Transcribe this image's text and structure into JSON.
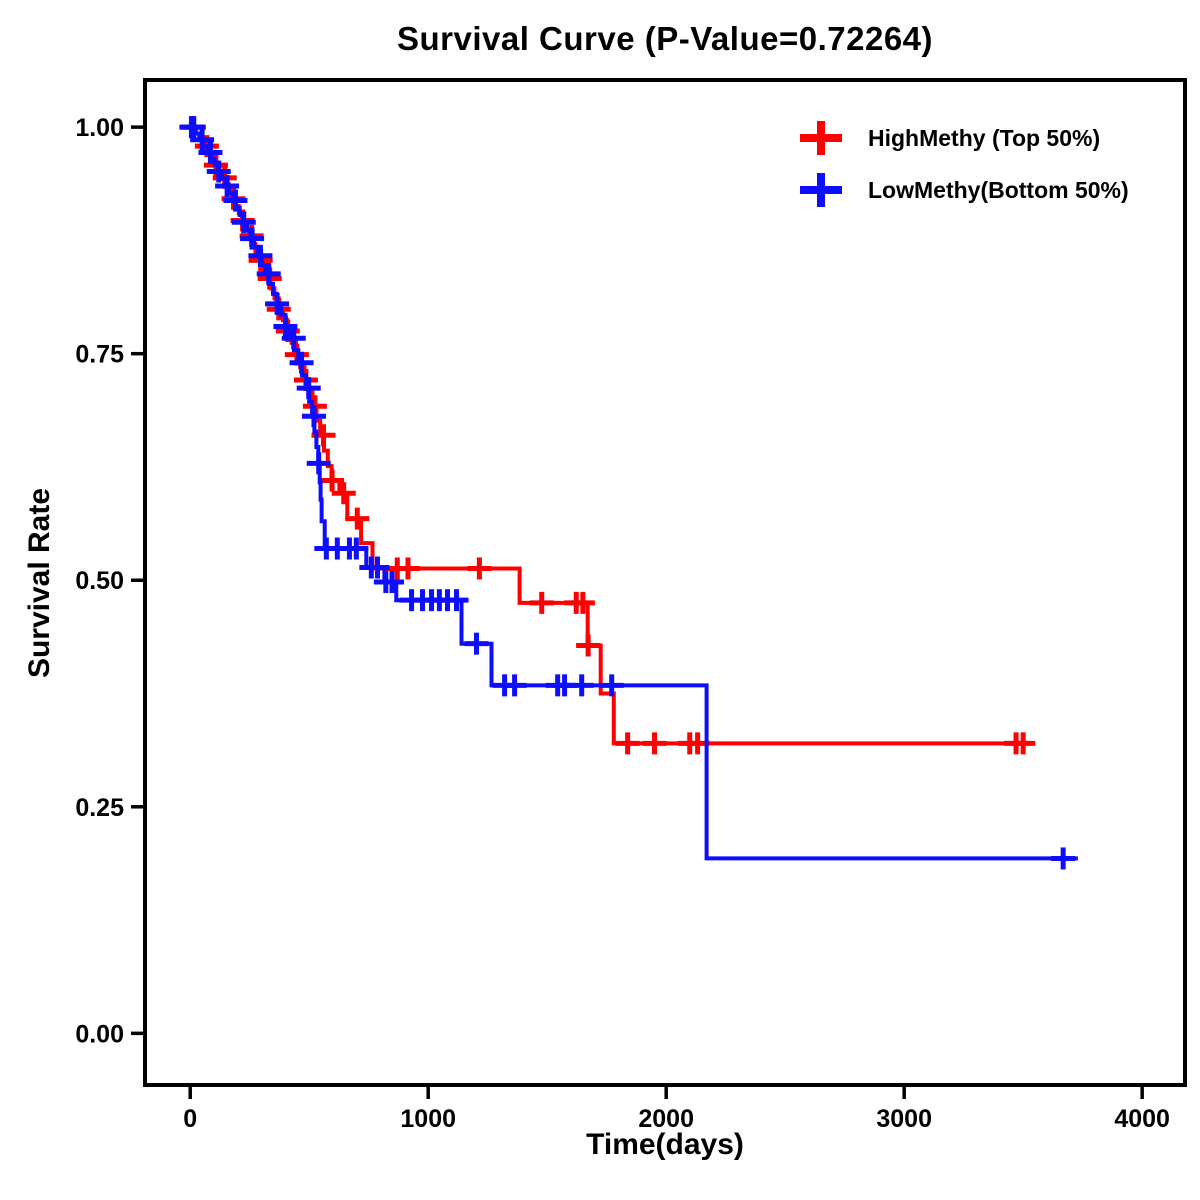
{
  "page": {
    "background": "#FFFFFF"
  },
  "colors": {
    "axis": "#000000",
    "text": "#000000",
    "high_methy": "#FF0000",
    "low_methy": "#0D0DFF"
  },
  "chart_data": {
    "type": "line",
    "subtype": "kaplan-meier-step",
    "title": "Survival Curve (P-Value=0.72264)",
    "p_value": "0.72264",
    "xlabel": "Time(days)",
    "ylabel": "Survival Rate",
    "grid": false,
    "legend_position": "top-right",
    "xlim": [
      -190,
      4180
    ],
    "ylim": [
      -0.057,
      1.052
    ],
    "xticks": {
      "values": [
        0,
        1000,
        2000,
        3000,
        4000
      ],
      "labels": [
        "0",
        "1000",
        "2000",
        "3000",
        "4000"
      ]
    },
    "yticks": {
      "values": [
        0,
        0.25,
        0.5,
        0.75,
        1
      ],
      "labels": [
        "0.00",
        "0.25",
        "0.50",
        "0.75",
        "1.00"
      ]
    },
    "series": [
      {
        "name": "HighMethy (Top 50%)",
        "color": "#FF0000",
        "steps": [
          [
            0,
            1.0
          ],
          [
            25,
            0.993
          ],
          [
            45,
            0.986
          ],
          [
            62,
            0.979
          ],
          [
            78,
            0.972
          ],
          [
            92,
            0.965
          ],
          [
            106,
            0.958
          ],
          [
            120,
            0.951
          ],
          [
            134,
            0.944
          ],
          [
            148,
            0.937
          ],
          [
            162,
            0.929
          ],
          [
            176,
            0.921
          ],
          [
            190,
            0.913
          ],
          [
            204,
            0.905
          ],
          [
            218,
            0.897
          ],
          [
            232,
            0.889
          ],
          [
            246,
            0.88
          ],
          [
            260,
            0.871
          ],
          [
            274,
            0.862
          ],
          [
            290,
            0.853
          ],
          [
            306,
            0.843
          ],
          [
            322,
            0.833
          ],
          [
            338,
            0.822
          ],
          [
            354,
            0.811
          ],
          [
            372,
            0.799
          ],
          [
            390,
            0.787
          ],
          [
            408,
            0.775
          ],
          [
            426,
            0.762
          ],
          [
            444,
            0.749
          ],
          [
            462,
            0.735
          ],
          [
            480,
            0.721
          ],
          [
            498,
            0.707
          ],
          [
            514,
            0.692
          ],
          [
            530,
            0.676
          ],
          [
            546,
            0.66
          ],
          [
            562,
            0.643
          ],
          [
            578,
            0.626
          ],
          [
            594,
            0.61
          ],
          [
            627,
            0.596
          ],
          [
            660,
            0.568
          ],
          [
            718,
            0.541
          ],
          [
            766,
            0.513
          ],
          [
            1384,
            0.475
          ],
          [
            1670,
            0.428
          ],
          [
            1725,
            0.375
          ],
          [
            1780,
            0.32
          ]
        ],
        "end_time": 3545,
        "censor_times": [
          10,
          70,
          108,
          145,
          182,
          220,
          258,
          296,
          334,
          372,
          410,
          448,
          486,
          524,
          560,
          596,
          645,
          702,
          870,
          915,
          1215,
          1477,
          1622,
          1650,
          1672,
          1838,
          1951,
          2099,
          2132,
          3470,
          3500
        ]
      },
      {
        "name": "LowMethy(Bottom 50%)",
        "color": "#0D0DFF",
        "steps": [
          [
            0,
            1.0
          ],
          [
            20,
            0.993
          ],
          [
            38,
            0.986
          ],
          [
            55,
            0.979
          ],
          [
            72,
            0.972
          ],
          [
            88,
            0.965
          ],
          [
            103,
            0.958
          ],
          [
            118,
            0.951
          ],
          [
            133,
            0.943
          ],
          [
            148,
            0.935
          ],
          [
            163,
            0.927
          ],
          [
            178,
            0.919
          ],
          [
            193,
            0.911
          ],
          [
            208,
            0.903
          ],
          [
            223,
            0.895
          ],
          [
            238,
            0.886
          ],
          [
            253,
            0.877
          ],
          [
            268,
            0.868
          ],
          [
            284,
            0.858
          ],
          [
            300,
            0.848
          ],
          [
            316,
            0.838
          ],
          [
            332,
            0.827
          ],
          [
            348,
            0.816
          ],
          [
            364,
            0.805
          ],
          [
            382,
            0.793
          ],
          [
            400,
            0.78
          ],
          [
            418,
            0.767
          ],
          [
            436,
            0.754
          ],
          [
            454,
            0.74
          ],
          [
            470,
            0.726
          ],
          [
            486,
            0.712
          ],
          [
            500,
            0.697
          ],
          [
            512,
            0.681
          ],
          [
            522,
            0.664
          ],
          [
            530,
            0.647
          ],
          [
            538,
            0.629
          ],
          [
            544,
            0.608
          ],
          [
            548,
            0.589
          ],
          [
            552,
            0.565
          ],
          [
            565,
            0.535
          ],
          [
            740,
            0.514
          ],
          [
            816,
            0.498
          ],
          [
            866,
            0.478
          ],
          [
            1140,
            0.43
          ],
          [
            1266,
            0.384
          ],
          [
            2170,
            0.193
          ]
        ],
        "end_time": 3730,
        "censor_times": [
          5,
          15,
          50,
          85,
          120,
          155,
          190,
          225,
          260,
          295,
          330,
          365,
          400,
          435,
          468,
          498,
          520,
          540,
          572,
          618,
          669,
          698,
          761,
          787,
          822,
          848,
          930,
          976,
          1014,
          1047,
          1081,
          1119,
          1203,
          1321,
          1363,
          1544,
          1573,
          1645,
          1771,
          3668
        ]
      }
    ]
  }
}
